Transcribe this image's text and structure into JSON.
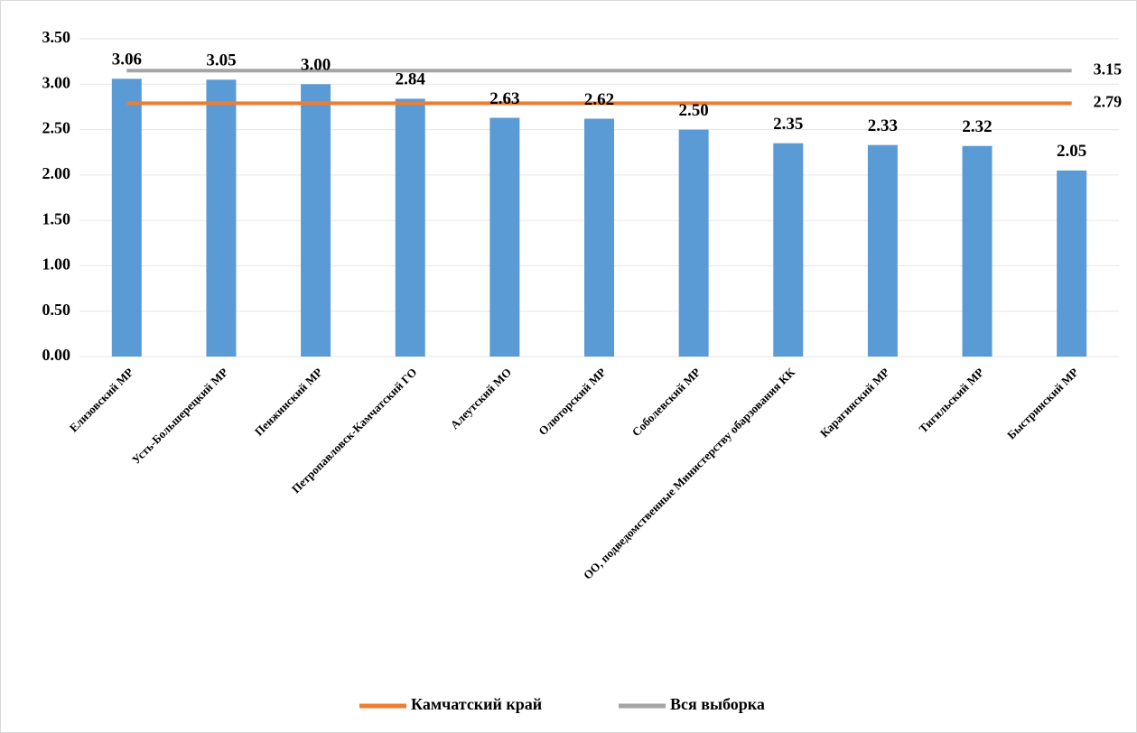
{
  "chart_data": {
    "type": "bar",
    "categories": [
      "Елизовский МР",
      "Усть-Большерецкий  МР",
      "Пенжинский МР",
      "Петропавловск-Камчатский ГО",
      "Алеутский МО",
      "Олюторский МР",
      "Соболевский МР",
      "ОО, подведомственные Министерству обарзования КК",
      "Карагинский МР",
      "Тигильский МР",
      "Быстринский МР"
    ],
    "values": [
      3.06,
      3.05,
      3.0,
      2.84,
      2.63,
      2.62,
      2.5,
      2.35,
      2.33,
      2.32,
      2.05
    ],
    "value_labels": [
      "3.06",
      "3.05",
      "3.00",
      "2.84",
      "2.63",
      "2.62",
      "2.50",
      "2.35",
      "2.33",
      "2.32",
      "2.05"
    ],
    "color": "#5b9bd5",
    "series": [
      {
        "name": "Камчатский край",
        "color": "#ed7d31",
        "values": [
          2.79,
          2.79,
          2.79,
          2.79,
          2.79,
          2.79,
          2.79,
          2.79,
          2.79,
          2.79,
          2.79
        ]
      },
      {
        "name": "Вся выборка",
        "color": "#a5a5a5",
        "values": [
          3.15,
          3.15,
          3.15,
          3.15,
          3.15,
          3.15,
          3.15,
          3.15,
          3.15,
          3.15,
          3.15
        ]
      }
    ],
    "ylim": [
      0,
      3.5
    ],
    "yticks": [
      {
        "value": 0,
        "label": "0.00"
      },
      {
        "value": 0.5,
        "label": "0.50"
      },
      {
        "value": 1,
        "label": "1.00"
      },
      {
        "value": 1.5,
        "label": "1.50"
      },
      {
        "value": 2,
        "label": "2.00"
      },
      {
        "value": 2.5,
        "label": "2.50"
      },
      {
        "value": 3,
        "label": "3.00"
      },
      {
        "value": 3.5,
        "label": "3.50"
      }
    ],
    "grid": true,
    "legend": "bottom"
  }
}
